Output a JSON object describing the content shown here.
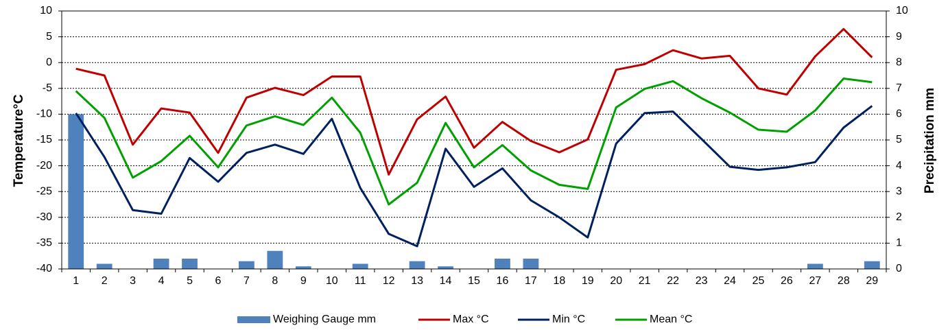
{
  "chart_data": {
    "type": "bar+line",
    "title": "",
    "categories": [
      "1",
      "2",
      "3",
      "4",
      "5",
      "6",
      "7",
      "8",
      "9",
      "10",
      "11",
      "12",
      "13",
      "14",
      "15",
      "16",
      "17",
      "18",
      "19",
      "20",
      "21",
      "22",
      "23",
      "24",
      "25",
      "26",
      "27",
      "28",
      "29"
    ],
    "y_left": {
      "label": "Temperature°C",
      "range": [
        -40,
        10
      ],
      "ticks": [
        -40,
        -35,
        -30,
        -25,
        -20,
        -15,
        -10,
        -5,
        0,
        5,
        10
      ]
    },
    "y_right": {
      "label": "Precipitation mm",
      "range": [
        0,
        10
      ],
      "ticks": [
        0,
        1,
        2,
        3,
        4,
        5,
        6,
        7,
        8,
        9,
        10
      ]
    },
    "grid": "horizontal-dotted",
    "legend_position": "bottom",
    "series": [
      {
        "name": "Weighing Gauge mm",
        "type": "bar",
        "axis": "right",
        "color": "#4F81BD",
        "values": [
          6.0,
          0.2,
          0,
          0.4,
          0.4,
          0,
          0.3,
          0.7,
          0.1,
          0,
          0.2,
          0,
          0.3,
          0.1,
          0,
          0.4,
          0.4,
          0,
          0,
          0,
          0,
          0,
          0,
          0,
          0,
          0,
          0.2,
          0,
          0.3
        ]
      },
      {
        "name": "Max °C",
        "type": "line",
        "axis": "left",
        "color": "#C00000",
        "values": [
          -1.2,
          -2.5,
          -15.9,
          -8.9,
          -9.7,
          -17.5,
          -6.8,
          -4.9,
          -6.3,
          -2.7,
          -2.7,
          -21.7,
          -11.0,
          -6.6,
          -16.5,
          -11.5,
          -15.2,
          -17.4,
          -14.9,
          -1.4,
          -0.3,
          2.4,
          0.8,
          1.3,
          -5.0,
          -6.2,
          1.2,
          6.5,
          1.0
        ]
      },
      {
        "name": "Min °C",
        "type": "line",
        "axis": "left",
        "color": "#002060",
        "values": [
          -9.8,
          -18.3,
          -28.6,
          -29.3,
          -18.5,
          -23.1,
          -17.5,
          -15.9,
          -17.7,
          -10.9,
          -24.3,
          -33.2,
          -35.6,
          -16.7,
          -24.1,
          -20.5,
          -26.7,
          -30.0,
          -33.9,
          -15.7,
          -9.8,
          -9.5,
          -14.8,
          -20.2,
          -20.8,
          -20.3,
          -19.3,
          -12.6,
          -8.4
        ]
      },
      {
        "name": "Mean °C",
        "type": "line",
        "axis": "left",
        "color": "#00A000",
        "values": [
          -5.5,
          -10.7,
          -22.3,
          -19.1,
          -14.2,
          -20.3,
          -12.2,
          -10.4,
          -12.1,
          -6.8,
          -13.6,
          -27.5,
          -23.3,
          -11.7,
          -20.3,
          -16.0,
          -20.9,
          -23.7,
          -24.5,
          -8.7,
          -5.1,
          -3.6,
          -6.9,
          -9.7,
          -13.0,
          -13.4,
          -9.3,
          -3.1,
          -3.8
        ]
      }
    ]
  }
}
